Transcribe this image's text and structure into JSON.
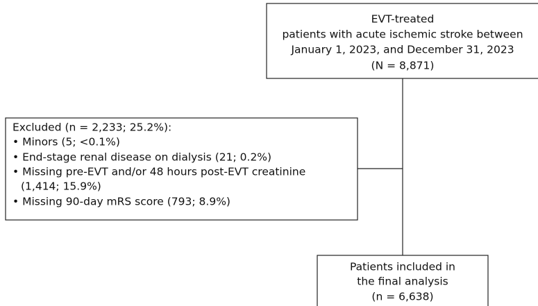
{
  "nodes": [
    {
      "lines": [
        "EVT-treated",
        "patients with acute ischemic stroke between",
        "January 1, 2023, and December 31, 2023",
        "(N = 8,871)"
      ]
    },
    {
      "lines": [
        "Excluded (n = 2,233; 25.2%):",
        "• Minors (5; <0.1%)",
        "• End-stage renal disease on dialysis (21; 0.2%)",
        "• Missing pre-EVT and/or 48 hours post-EVT creatinine",
        "(1,414; 15.9%)",
        "• Missing 90-day mRS score (793; 8.9%)"
      ]
    },
    {
      "lines": [
        "Patients included in",
        "the final analysis",
        "(n = 6,638)"
      ]
    }
  ]
}
